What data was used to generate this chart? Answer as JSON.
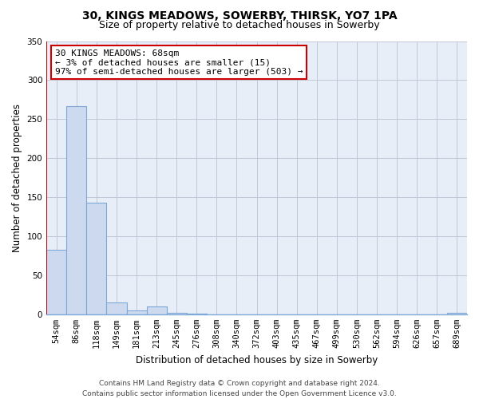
{
  "title": "30, KINGS MEADOWS, SOWERBY, THIRSK, YO7 1PA",
  "subtitle": "Size of property relative to detached houses in Sowerby",
  "xlabel": "Distribution of detached houses by size in Sowerby",
  "ylabel": "Number of detached properties",
  "bar_labels": [
    "54sqm",
    "86sqm",
    "118sqm",
    "149sqm",
    "181sqm",
    "213sqm",
    "245sqm",
    "276sqm",
    "308sqm",
    "340sqm",
    "372sqm",
    "403sqm",
    "435sqm",
    "467sqm",
    "499sqm",
    "530sqm",
    "562sqm",
    "594sqm",
    "626sqm",
    "657sqm",
    "689sqm"
  ],
  "bar_values": [
    83,
    267,
    143,
    15,
    5,
    10,
    2,
    1,
    0,
    0,
    0,
    0,
    0,
    0,
    0,
    0,
    0,
    0,
    0,
    0,
    2
  ],
  "bar_face_color": "#cdd9ee",
  "bar_edge_color": "#7da8d8",
  "highlight_line_color": "#aa1111",
  "plot_bg_color": "#e8eef8",
  "fig_bg_color": "#ffffff",
  "grid_color": "#c0c8d8",
  "ylim": [
    0,
    350
  ],
  "yticks": [
    0,
    50,
    100,
    150,
    200,
    250,
    300,
    350
  ],
  "annotation_text": "30 KINGS MEADOWS: 68sqm\n← 3% of detached houses are smaller (15)\n97% of semi-detached houses are larger (503) →",
  "annotation_box_color": "#ffffff",
  "annotation_border_color": "#cc0000",
  "footer_line1": "Contains HM Land Registry data © Crown copyright and database right 2024.",
  "footer_line2": "Contains public sector information licensed under the Open Government Licence v3.0.",
  "title_fontsize": 10,
  "subtitle_fontsize": 9,
  "axis_label_fontsize": 8.5,
  "tick_fontsize": 7.5,
  "annotation_fontsize": 8,
  "footer_fontsize": 6.5
}
